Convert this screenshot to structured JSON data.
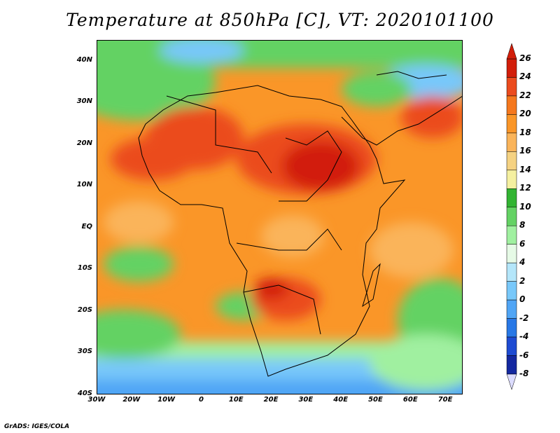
{
  "title": "Temperature at 850hPa [C], VT: 2020101100",
  "credit": "GrADS: IGES/COLA",
  "map": {
    "lon_range": [
      -30,
      75
    ],
    "lat_range": [
      -40,
      45
    ],
    "lat_ticks": [
      "40N",
      "30N",
      "20N",
      "10N",
      "EQ",
      "10S",
      "20S",
      "30S",
      "40S"
    ],
    "lat_values": [
      40,
      30,
      20,
      10,
      0,
      -10,
      -20,
      -30,
      -40
    ],
    "lon_ticks": [
      "30W",
      "20W",
      "10W",
      "0",
      "10E",
      "20E",
      "30E",
      "40E",
      "50E",
      "60E",
      "70E"
    ],
    "lon_values": [
      -30,
      -20,
      -10,
      0,
      10,
      20,
      30,
      40,
      50,
      60,
      70
    ]
  },
  "colorbar": {
    "labels": [
      "26",
      "24",
      "22",
      "20",
      "18",
      "16",
      "14",
      "12",
      "10",
      "8",
      "6",
      "4",
      "2",
      "0",
      "-2",
      "-4",
      "-6",
      "-8"
    ],
    "colors": [
      "#780000",
      "#d21e0a",
      "#eb4b1e",
      "#f5781e",
      "#fa9628",
      "#fab45a",
      "#f5d282",
      "#f5f0a0",
      "#32b432",
      "#64d264",
      "#a0f0a0",
      "#e6fae6",
      "#b4e6fa",
      "#78c8fa",
      "#50a5f5",
      "#2878e6",
      "#1e4bd2",
      "#1428a0",
      "#0a0a64",
      "#c8c8fa"
    ],
    "top_arrow_color": "#d21e0a",
    "bottom_arrow_color": "#dcdcff"
  }
}
